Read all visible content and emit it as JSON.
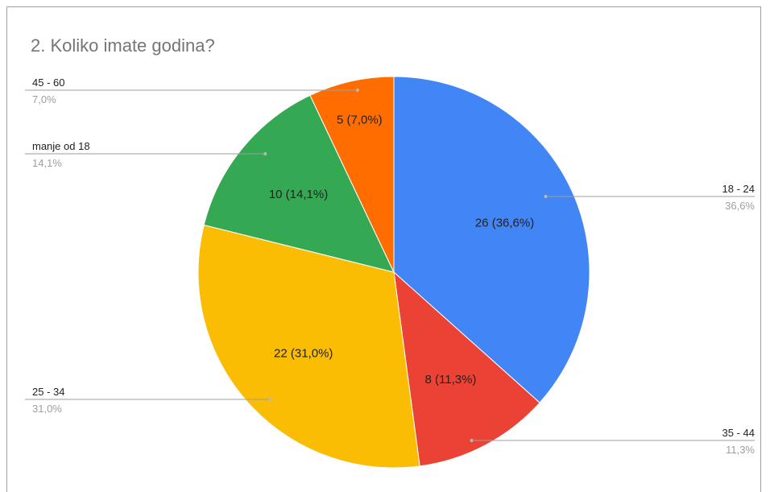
{
  "chart_data": {
    "type": "pie",
    "title": "2. Koliko imate godina?",
    "slices": [
      {
        "name": "18 - 24",
        "value": 26,
        "label": "26 (36,6%)",
        "percent_text": "36,6%",
        "color": "#4285f4"
      },
      {
        "name": "35 - 44",
        "value": 8,
        "label": "8 (11,3%)",
        "percent_text": "11,3%",
        "color": "#ea4335"
      },
      {
        "name": "25 - 34",
        "value": 22,
        "label": "22 (31,0%)",
        "percent_text": "31,0%",
        "color": "#fbbc04"
      },
      {
        "name": "manje od 18",
        "value": 10,
        "label": "10 (14,1%)",
        "percent_text": "14,1%",
        "color": "#34a853"
      },
      {
        "name": "45 - 60",
        "value": 5,
        "label": "5 (7,0%)",
        "percent_text": "7,0%",
        "color": "#ff6d01"
      }
    ],
    "legend": "labeled-callouts"
  }
}
